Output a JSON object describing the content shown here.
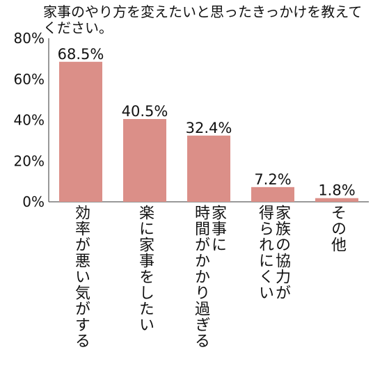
{
  "chart_data": {
    "type": "bar",
    "title": "家事のやり方を変えたいと思ったきっかけを教えてください。",
    "categories": [
      "効率が悪い気がする",
      "楽に家事をしたい",
      "家事に\n時間がかかり過ぎる",
      "家族の協力が\n得られにくい",
      "その他"
    ],
    "values": [
      68.5,
      40.5,
      32.4,
      7.2,
      1.8
    ],
    "data_labels": [
      "68.5%",
      "40.5%",
      "32.4%",
      "7.2%",
      "1.8%"
    ],
    "yticks": [
      "0%",
      "20%",
      "40%",
      "60%",
      "80%"
    ],
    "ylim": [
      0,
      80
    ],
    "xlabel": "",
    "ylabel": "",
    "grid": false,
    "bar_color": "#db8f88"
  }
}
